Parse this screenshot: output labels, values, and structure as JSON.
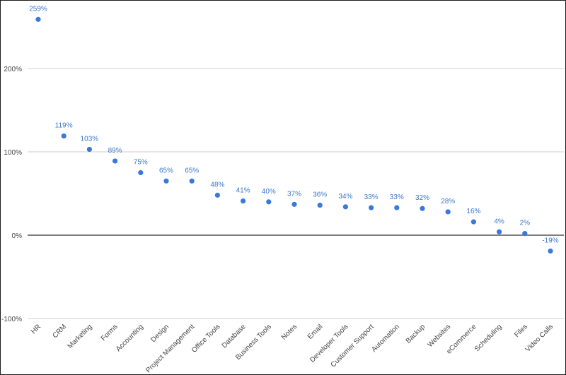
{
  "chart_data": {
    "type": "scatter",
    "categories": [
      "HR",
      "CRM",
      "Marketing",
      "Forms",
      "Accounting",
      "Design",
      "Project Management",
      "Office Tools",
      "Database",
      "Business Tools",
      "Notes",
      "Email",
      "Developer Tools",
      "Customer Support",
      "Automation",
      "Backup",
      "Websites",
      "eCommerce",
      "Scheduling",
      "Files",
      "Video Calls"
    ],
    "values": [
      259,
      119,
      103,
      89,
      75,
      65,
      65,
      48,
      41,
      40,
      37,
      36,
      34,
      33,
      33,
      32,
      28,
      16,
      4,
      2,
      -19
    ],
    "data_labels": [
      "259%",
      "119%",
      "103%",
      "89%",
      "75%",
      "65%",
      "65%",
      "48%",
      "41%",
      "40%",
      "37%",
      "36%",
      "34%",
      "33%",
      "33%",
      "32%",
      "28%",
      "16%",
      "4%",
      "2%",
      "-19%"
    ],
    "yticks": [
      -100,
      0,
      100,
      200
    ],
    "ytick_labels": [
      "-100%",
      "0%",
      "100%",
      "200%"
    ],
    "ylim": [
      -100,
      280
    ],
    "point_color": "#3b78dd",
    "label_color": "#3b78c9",
    "grid": true,
    "legend": "none"
  }
}
